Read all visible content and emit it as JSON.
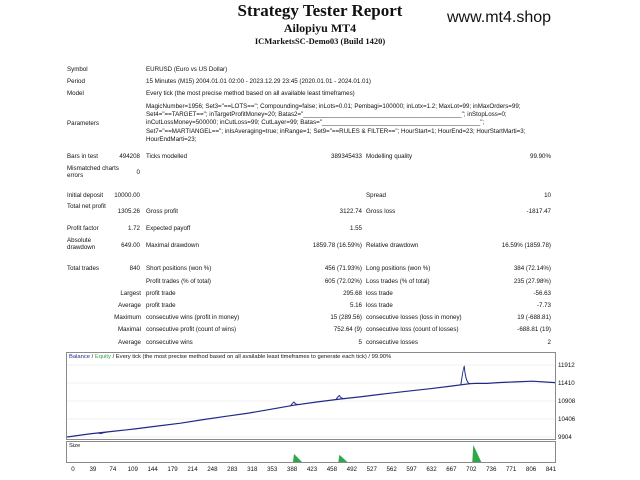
{
  "header": {
    "title": "Strategy Tester Report",
    "expert": "Ailopiyu MT4",
    "server": "ICMarketsSC-Demo03 (Build 1420)",
    "brand": "www.mt4.shop"
  },
  "info": {
    "symbol_label": "Symbol",
    "symbol_value": "EURUSD (Euro vs US Dollar)",
    "period_label": "Period",
    "period_value": "15 Minutes (M15) 2004.01.01 02:00 - 2023.12.29 23:45 (2020.01.01 - 2024.01.01)",
    "model_label": "Model",
    "model_value": "Every tick (the most precise method based on all available least timeframes)",
    "parameters_label": "Parameters",
    "parameters_lines": [
      "MagicNumber=1956; Set3=\"==LOTS==\"; Compounding=false; inLots=0.01; Pembagi=100000; inLotx=1.2; MaxLot=99; inMaxOrders=99;",
      "Set4=\"==TARGET==\"; inTargetProfitMoney=20; Batas2=\"______________________________________________\"; inStopLoss=0;",
      "inCutLossMoney=500000; inCutLoss=99; CutLayer=99; Batas=\"______________________________________________\";",
      "Set7=\"==MARTIANGEL==\"; inIsAveraging=true; inRange=1; Set9=\"==RULES & FILTER==\"; HourStart=1; HourEnd=23; HourStartMarti=3;",
      "HourEndMarti=23;"
    ]
  },
  "stats": {
    "bars_label": "Bars in test",
    "bars_value": "494208",
    "ticks_label": "Ticks modelled",
    "ticks_value": "389345433",
    "quality_label": "Modelling quality",
    "quality_value": "99.90%",
    "mismatch_label": "Mismatched charts errors",
    "mismatch_value": "0",
    "deposit_label": "Initial deposit",
    "deposit_value": "10000.00",
    "spread_label": "Spread",
    "spread_value": "10",
    "netprofit_label": "Total net profit",
    "netprofit_value": "1305.26",
    "grossprofit_label": "Gross profit",
    "grossprofit_value": "3122.74",
    "grossloss_label": "Gross loss",
    "grossloss_value": "-1817.47",
    "pf_label": "Profit factor",
    "pf_value": "1.72",
    "ep_label": "Expected payoff",
    "ep_value": "1.55",
    "absdd_label": "Absolute drawdown",
    "absdd_value": "649.00",
    "maxdd_label": "Maximal drawdown",
    "maxdd_value": "1859.78 (16.59%)",
    "reldd_label": "Relative drawdown",
    "reldd_value": "16.59% (1859.78)",
    "trades_label": "Total trades",
    "trades_value": "840",
    "short_label": "Short positions (won %)",
    "short_value": "456 (71.93%)",
    "long_label": "Long positions (won %)",
    "long_value": "384 (72.14%)",
    "pt_label": "Profit trades (% of total)",
    "pt_value": "605 (72.02%)",
    "lt_label": "Loss trades (% of total)",
    "lt_value": "235 (27.98%)",
    "largest_label": "Largest",
    "lpt_label": "profit trade",
    "lpt_value": "295.68",
    "llt_label": "loss trade",
    "llt_value": "-56.63",
    "average_label": "Average",
    "apt_label": "profit trade",
    "apt_value": "5.16",
    "alt_label": "loss trade",
    "alt_value": "-7.73",
    "maximum_label": "Maximum",
    "mcw_label": "consecutive wins (profit in money)",
    "mcw_value": "15 (289.56)",
    "mcl_label": "consecutive losses (loss in money)",
    "mcl_value": "19 (-688.81)",
    "maximal_label": "Maximal",
    "mcp_label": "consecutive profit (count of wins)",
    "mcp_value": "752.64 (9)",
    "mcll_label": "consecutive loss (count of losses)",
    "mcll_value": "-688.81 (19)",
    "average2_label": "Average",
    "acw_label": "consecutive wins",
    "acw_value": "5",
    "acl_label": "consecutive losses",
    "acl_value": "2"
  },
  "chart_data": {
    "type": "line",
    "legend_balance": "Balance",
    "legend_sep1": "/",
    "legend_equity": "Equity",
    "legend_rest": "/ Every tick (the most precise method based on all available least timeframes to generate each tick) / 99.90%",
    "volume_label": "Size",
    "y_ticks": [
      "11912",
      "11410",
      "10908",
      "10406",
      "9904"
    ],
    "x_ticks": [
      "0",
      "39",
      "74",
      "109",
      "144",
      "179",
      "214",
      "248",
      "283",
      "318",
      "353",
      "388",
      "423",
      "458",
      "492",
      "527",
      "562",
      "597",
      "632",
      "667",
      "702",
      "736",
      "771",
      "806",
      "841"
    ],
    "ylim": [
      9904,
      11912
    ],
    "xlim": [
      0,
      860
    ],
    "balance_color": "#1f2a86",
    "equity_color": "#1f2a86",
    "volume_color": "#2fa84a",
    "series": [
      {
        "name": "Balance",
        "x": [
          0,
          40,
          80,
          120,
          160,
          200,
          240,
          280,
          320,
          360,
          400,
          440,
          480,
          520,
          560,
          600,
          640,
          680,
          710,
          720,
          740,
          760,
          790,
          820,
          860
        ],
        "y": [
          9904,
          9990,
          10060,
          10130,
          10210,
          10290,
          10390,
          10480,
          10570,
          10680,
          10790,
          10880,
          10960,
          11030,
          11110,
          11180,
          11250,
          11330,
          11390,
          11400,
          11400,
          11420,
          11440,
          11460,
          11420
        ]
      }
    ],
    "equity_spikes": [
      {
        "x": 60,
        "y": 10000
      },
      {
        "x": 400,
        "y": 10880
      },
      {
        "x": 480,
        "y": 11060
      },
      {
        "x": 700,
        "y": 11880
      }
    ],
    "volume_spikes": [
      {
        "x": 400,
        "v": 0.45
      },
      {
        "x": 480,
        "v": 0.4
      },
      {
        "x": 716,
        "v": 0.95
      }
    ]
  }
}
